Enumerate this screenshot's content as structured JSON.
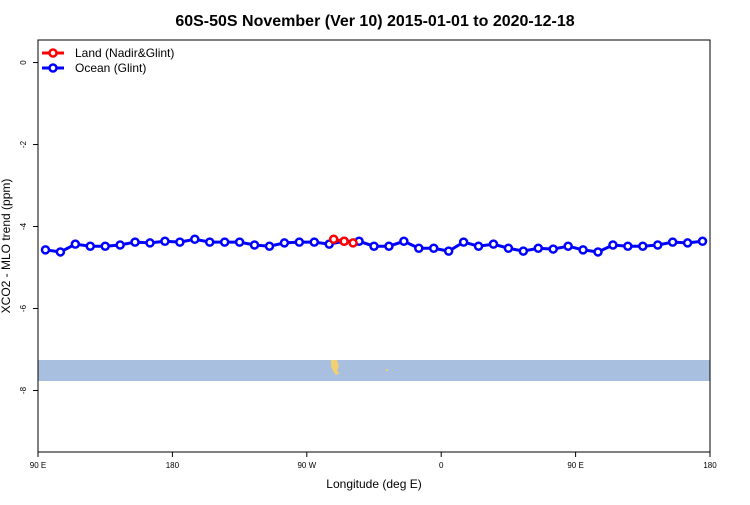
{
  "chart_data": {
    "type": "line",
    "title": "60S-50S November (Ver 10)   2015-01-01 to 2020-12-18",
    "x_label": "Longitude (deg E)",
    "y_label": "XCO2 - MLO trend (ppm)",
    "xlim": [
      90,
      540
    ],
    "xticks": [
      {
        "value": 90,
        "label": "90 E"
      },
      {
        "value": 180,
        "label": "180"
      },
      {
        "value": 270,
        "label": "90 W"
      },
      {
        "value": 360,
        "label": "0"
      },
      {
        "value": 450,
        "label": "90 E"
      },
      {
        "value": 540,
        "label": "180"
      }
    ],
    "ylim": [
      -9.5,
      0.55
    ],
    "yticks": [
      0,
      -2,
      -4,
      -6,
      -8
    ],
    "legend_position": "top-left",
    "series": [
      {
        "name": "Land (Nadir&Glint)",
        "color": "#ff0000",
        "x": [
          288,
          295,
          301
        ],
        "values": [
          -4.31,
          -4.36,
          -4.4
        ]
      },
      {
        "name": "Ocean (Glint)",
        "color": "#0000ff",
        "x": [
          95,
          105,
          115,
          125,
          135,
          145,
          155,
          165,
          175,
          185,
          195,
          205,
          215,
          225,
          235,
          245,
          255,
          265,
          275,
          285,
          295,
          305,
          315,
          325,
          335,
          345,
          355,
          365,
          375,
          385,
          395,
          405,
          415,
          425,
          435,
          445,
          455,
          465,
          475,
          485,
          495,
          505,
          515,
          525,
          535
        ],
        "values": [
          -4.57,
          -4.62,
          -4.43,
          -4.48,
          -4.48,
          -4.45,
          -4.38,
          -4.4,
          -4.36,
          -4.38,
          -4.31,
          -4.38,
          -4.38,
          -4.38,
          -4.45,
          -4.48,
          -4.4,
          -4.38,
          -4.38,
          -4.43,
          -4.36,
          -4.36,
          -4.48,
          -4.48,
          -4.36,
          -4.53,
          -4.53,
          -4.6,
          -4.38,
          -4.48,
          -4.43,
          -4.53,
          -4.6,
          -4.53,
          -4.55,
          -4.48,
          -4.57,
          -4.62,
          -4.45,
          -4.48,
          -4.48,
          -4.45,
          -4.38,
          -4.4,
          -4.36
        ]
      }
    ]
  }
}
